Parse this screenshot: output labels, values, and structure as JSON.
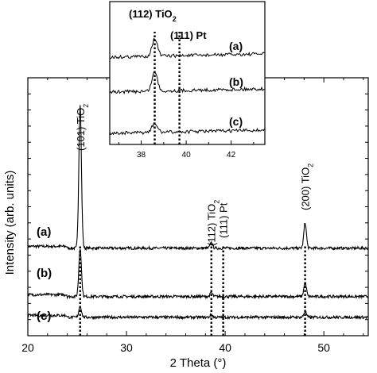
{
  "chart_data": [
    {
      "type": "line",
      "role": "main",
      "xlabel": "2 Theta (°)",
      "ylabel": "Intensity (arb. units)",
      "xlim": [
        20,
        54.5
      ],
      "xticks": [
        20,
        30,
        40,
        50
      ],
      "y_tick_labels": false,
      "grid": false,
      "series": [
        {
          "name": "(a)",
          "baseline": 1.9,
          "peaks": [
            {
              "x": 25.3,
              "height": 3.1
            },
            {
              "x": 38.6,
              "height": 0.12
            },
            {
              "x": 48.1,
              "height": 0.55
            }
          ]
        },
        {
          "name": "(b)",
          "baseline": 0.85,
          "peaks": [
            {
              "x": 25.3,
              "height": 1.05
            },
            {
              "x": 38.6,
              "height": 0.08
            },
            {
              "x": 48.1,
              "height": 0.3
            }
          ]
        },
        {
          "name": "(c)",
          "baseline": 0.4,
          "peaks": [
            {
              "x": 25.3,
              "height": 0.25
            },
            {
              "x": 38.6,
              "height": 0.05
            },
            {
              "x": 48.1,
              "height": 0.12
            }
          ]
        }
      ],
      "reference_lines": [
        25.3,
        38.6,
        39.8,
        48.1
      ],
      "annotations": [
        {
          "id": "tio2_101",
          "x": 25.3,
          "main": "(101) TiO",
          "sub": "2"
        },
        {
          "id": "tio2_112",
          "x": 38.6,
          "main": "(112) TiO",
          "sub": "2"
        },
        {
          "id": "pt_111",
          "x": 39.8,
          "main": "(111) Pt",
          "sub": ""
        },
        {
          "id": "tio2_200",
          "x": 48.1,
          "main": "(200) TiO",
          "sub": "2"
        }
      ]
    },
    {
      "type": "line",
      "role": "inset",
      "xlim": [
        36.6,
        43.5
      ],
      "xticks": [
        38,
        40,
        42
      ],
      "series": [
        {
          "name": "(a)",
          "peak_x": 38.6,
          "peak_height": 1.0
        },
        {
          "name": "(b)",
          "peak_x": 38.6,
          "peak_height": 1.1
        },
        {
          "name": "(c)",
          "peak_x": 38.6,
          "peak_height": 0.5
        }
      ],
      "reference_lines": [
        38.6,
        39.7
      ],
      "annotations": [
        {
          "id": "inset_tio2_112",
          "main": "(112) TiO",
          "sub": "2"
        },
        {
          "id": "inset_pt_111",
          "main": "(111) Pt",
          "sub": ""
        }
      ]
    }
  ]
}
